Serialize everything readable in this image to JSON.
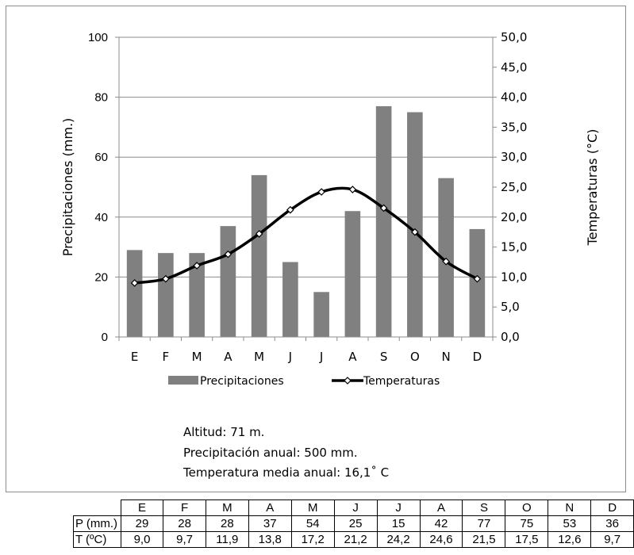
{
  "chart_data": {
    "type": "bar+line",
    "categories": [
      "E",
      "F",
      "M",
      "A",
      "M",
      "J",
      "J",
      "A",
      "S",
      "O",
      "N",
      "D"
    ],
    "series": [
      {
        "name": "Precipitaciones",
        "type": "bar",
        "axis": "left",
        "color": "#808080",
        "values": [
          29,
          28,
          28,
          37,
          54,
          25,
          15,
          42,
          77,
          75,
          53,
          36
        ]
      },
      {
        "name": "Temperaturas",
        "type": "line",
        "axis": "right",
        "color": "#000000",
        "values": [
          9.0,
          9.7,
          11.9,
          13.8,
          17.2,
          21.2,
          24.2,
          24.6,
          21.5,
          17.5,
          12.6,
          9.7
        ]
      }
    ],
    "ylabel_left": "Precipitaciones (mm.)",
    "ylabel_right": "Temperaturas (°C)",
    "ylim_left": [
      0,
      100
    ],
    "ylim_right": [
      0,
      50
    ],
    "yticks_left": [
      "0",
      "20",
      "40",
      "60",
      "80",
      "100"
    ],
    "yticks_right": [
      "0,0",
      "5,0",
      "10,0",
      "15,0",
      "20,0",
      "25,0",
      "30,0",
      "35,0",
      "40,0",
      "45,0",
      "50,0"
    ],
    "grid": true,
    "legend_position": "bottom"
  },
  "info": {
    "altitude": "Altitud: 71 m.",
    "annual_precip": "Precipitación anual: 500 mm.",
    "mean_temp": "Temperatura media anual: 16,1˚ C"
  },
  "table": {
    "headers": [
      "E",
      "F",
      "M",
      "A",
      "M",
      "J",
      "J",
      "A",
      "S",
      "O",
      "N",
      "D"
    ],
    "rows": [
      {
        "label": "P (mm.)",
        "values": [
          "29",
          "28",
          "28",
          "37",
          "54",
          "25",
          "15",
          "42",
          "77",
          "75",
          "53",
          "36"
        ]
      },
      {
        "label": "T (ºC)",
        "values": [
          "9,0",
          "9,7",
          "11,9",
          "13,8",
          "17,2",
          "21,2",
          "24,2",
          "24,6",
          "21,5",
          "17,5",
          "12,6",
          "9,7"
        ]
      }
    ]
  }
}
